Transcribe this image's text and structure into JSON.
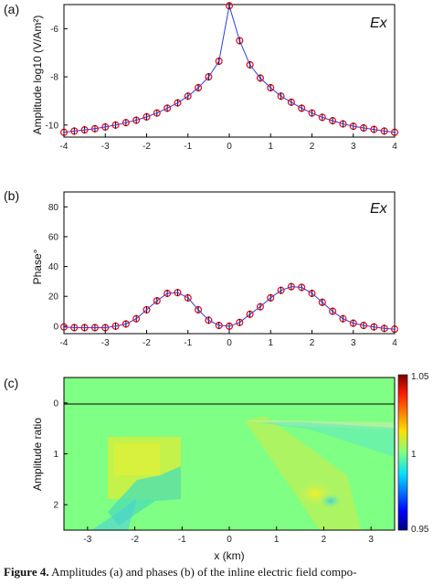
{
  "figure": {
    "caption_label": "Figure 4.",
    "caption_text": "Amplitudes (a) and phases (b) of the inline electric field compo-"
  },
  "chart_data": [
    {
      "panel": "(a)",
      "type": "line",
      "corner_label": "Ex",
      "ylabel": "Amplitude log10 (V/Am²)",
      "xlim": [
        -4,
        4
      ],
      "ylim": [
        -10.5,
        -5
      ],
      "xticks": [
        -4,
        -3,
        -2,
        -1,
        0,
        1,
        2,
        3,
        4
      ],
      "yticks": [
        -10,
        -8,
        -6
      ],
      "x": [
        -4.0,
        -3.75,
        -3.5,
        -3.25,
        -3.0,
        -2.75,
        -2.5,
        -2.25,
        -2.0,
        -1.75,
        -1.5,
        -1.25,
        -1.0,
        -0.75,
        -0.5,
        -0.25,
        0.0,
        0.25,
        0.5,
        0.75,
        1.0,
        1.25,
        1.5,
        1.75,
        2.0,
        2.25,
        2.5,
        2.75,
        3.0,
        3.25,
        3.5,
        3.75,
        4.0
      ],
      "series": [
        {
          "values": [
            -10.3,
            -10.25,
            -10.2,
            -10.15,
            -10.08,
            -10.0,
            -9.9,
            -9.8,
            -9.66,
            -9.5,
            -9.3,
            -9.08,
            -8.8,
            -8.45,
            -8.0,
            -7.35,
            -5.05,
            -6.5,
            -7.5,
            -8.05,
            -8.45,
            -8.8,
            -9.05,
            -9.3,
            -9.5,
            -9.68,
            -9.82,
            -9.95,
            -10.05,
            -10.12,
            -10.18,
            -10.25,
            -10.3
          ]
        }
      ],
      "style": {
        "line_color": "#2b3fd6",
        "marker_color": "#e8102a"
      }
    },
    {
      "panel": "(b)",
      "type": "line",
      "corner_label": "Ex",
      "ylabel": "Phase°",
      "xlim": [
        -4,
        4
      ],
      "ylim": [
        -5,
        90
      ],
      "xticks": [
        -4,
        -3,
        -2,
        -1,
        0,
        1,
        2,
        3,
        4
      ],
      "yticks": [
        0,
        20,
        40,
        60,
        80
      ],
      "x": [
        -4.0,
        -3.75,
        -3.5,
        -3.25,
        -3.0,
        -2.75,
        -2.5,
        -2.25,
        -2.0,
        -1.75,
        -1.5,
        -1.25,
        -1.0,
        -0.75,
        -0.5,
        -0.25,
        0.0,
        0.25,
        0.5,
        0.75,
        1.0,
        1.25,
        1.5,
        1.75,
        2.0,
        2.25,
        2.5,
        2.75,
        3.0,
        3.25,
        3.5,
        3.75,
        4.0
      ],
      "series": [
        {
          "values": [
            -0.5,
            -1.0,
            -1.0,
            -1.0,
            -1.0,
            0.0,
            1.5,
            5.0,
            11.0,
            17.0,
            22.0,
            22.5,
            19.0,
            11.0,
            4.0,
            0.5,
            0.0,
            2.5,
            8.0,
            13.0,
            19.0,
            24.0,
            26.5,
            26.0,
            22.0,
            16.0,
            10.0,
            5.0,
            2.0,
            0.5,
            -0.5,
            -1.5,
            -2.0
          ]
        }
      ],
      "style": {
        "line_color": "#2b3fd6",
        "marker_color": "#e8102a"
      }
    },
    {
      "panel": "(c)",
      "type": "heatmap",
      "ylabel": "Amplitude ratio",
      "xlabel": "x (km)",
      "xlim": [
        -3.5,
        3.5
      ],
      "ylim": [
        2.5,
        -0.5
      ],
      "xticks": [
        -3,
        -2,
        -1,
        0,
        1,
        2,
        3
      ],
      "yticks": [
        0,
        1,
        2
      ],
      "colorbar": {
        "min": 0.95,
        "max": 1.05,
        "ticks": [
          "1.05",
          "1",
          "0.95"
        ],
        "colormap": "jet"
      },
      "background_value": 1.0
    }
  ]
}
